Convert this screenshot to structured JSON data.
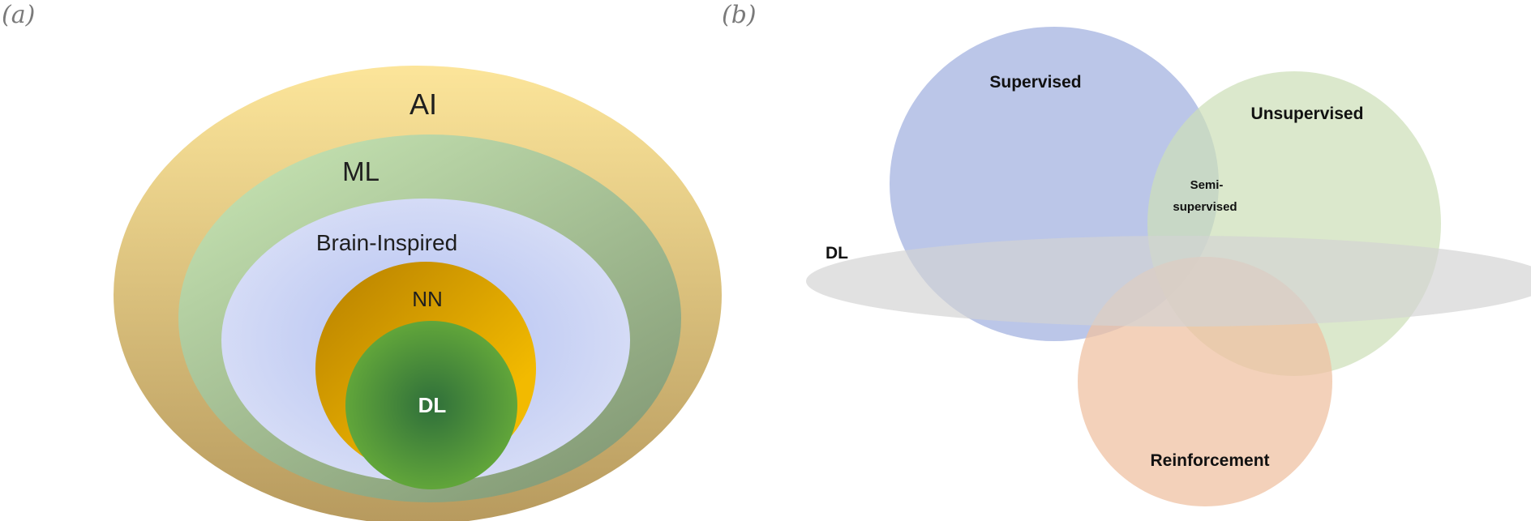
{
  "panels": {
    "a": {
      "label": "(a)",
      "layers": [
        {
          "id": "ai",
          "label": "AI",
          "color_top": "#fce59a",
          "color_bottom": "#b79a5e"
        },
        {
          "id": "ml",
          "label": "ML",
          "color_top": "#bfdcac",
          "color_bottom": "#879e79"
        },
        {
          "id": "brain",
          "label": "Brain-Inspired",
          "color_center": "#b2c0f2",
          "color_edge": "#d8def6"
        },
        {
          "id": "nn",
          "label": "NN",
          "color_dark": "#b67f00",
          "color_light": "#f2ba00"
        },
        {
          "id": "dl",
          "label": "DL",
          "color_center": "#2f6f3a",
          "color_edge": "#66ab3a"
        }
      ]
    },
    "b": {
      "label": "(b)",
      "sets": [
        {
          "id": "supervised",
          "label": "Supervised",
          "color": "#b4c0e6"
        },
        {
          "id": "unsupervised",
          "label": "Unsupervised",
          "color": "#cddfb8"
        },
        {
          "id": "reinforcement",
          "label": "Reinforcement",
          "color": "#efc1a3"
        },
        {
          "id": "dl",
          "label": "DL",
          "color": "#d3d3d3"
        }
      ],
      "intersection_label": [
        "Semi-",
        "supervised"
      ]
    }
  }
}
